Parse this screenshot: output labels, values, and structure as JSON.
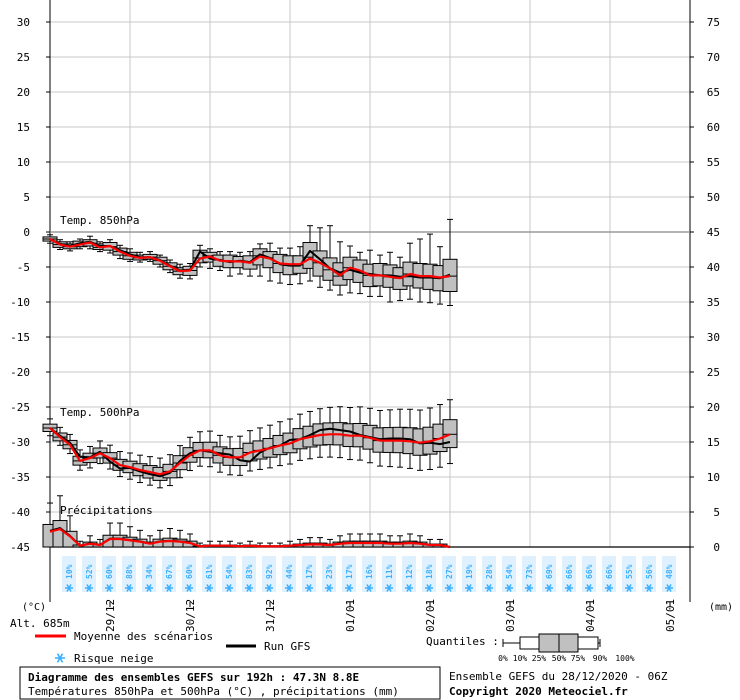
{
  "chart_data": {
    "type": "boxplot-ensemble",
    "title": "Diagramme des ensembles GEFS sur 192h : 47.3N 8.8E",
    "subtitle": "Températures 850hPa et 500hPa (°C) , précipitations (mm)",
    "run_info": "Ensemble GEFS du 28/12/2020 - 06Z",
    "copyright": "Copyright 2020 Meteociel.fr",
    "left_axis": {
      "label": "(°C)",
      "ticks": [
        30,
        25,
        20,
        15,
        10,
        5,
        0,
        -5,
        -10,
        -15,
        -20,
        -25,
        -30,
        -35,
        -40,
        -45
      ],
      "range": [
        -45,
        30
      ]
    },
    "right_axis": {
      "label": "(mm)",
      "ticks": [
        75,
        70,
        65,
        60,
        55,
        50,
        45,
        40,
        35,
        30,
        25,
        20,
        15,
        10,
        5,
        0
      ],
      "range": [
        0,
        75
      ]
    },
    "altitude": "Alt. 685m",
    "date_labels": [
      {
        "label": "29/12",
        "step": 6
      },
      {
        "label": "30/12",
        "step": 14
      },
      {
        "label": "31/12",
        "step": 22
      },
      {
        "label": "01/01",
        "step": 30
      },
      {
        "label": "02/01",
        "step": 38
      },
      {
        "label": "03/01",
        "step": 46
      },
      {
        "label": "04/01",
        "step": 54
      },
      {
        "label": "05/01",
        "step": 62
      }
    ],
    "panels": {
      "t850_label": "Temp. 850hPa",
      "t500_label": "Temp. 500hPa",
      "precip_label": "Précipitations"
    },
    "t850": {
      "mean": [
        -1,
        -1.8,
        -2.1,
        -1.8,
        -1.5,
        -2.2,
        -2,
        -2.8,
        -3.4,
        -3.7,
        -3.6,
        -4.1,
        -4.9,
        -5.6,
        -5.5,
        -3.8,
        -3.5,
        -4.1,
        -4.2,
        -4.2,
        -4.4,
        -3.5,
        -3.8,
        -4.5,
        -4.6,
        -4.6,
        -3.8,
        -4.4,
        -5.2,
        -6.2,
        -5.1,
        -5.5,
        -6.2,
        -6.2,
        -6.4,
        -6.6,
        -6,
        -6.3,
        -6.3,
        -6.5,
        -6.3
      ],
      "gfs": [
        -1,
        -1.7,
        -2,
        -1.6,
        -1.4,
        -2,
        -2,
        -2.6,
        -3.2,
        -3.6,
        -3.6,
        -4,
        -4.8,
        -5.5,
        -5.4,
        -2.8,
        -3.8,
        -4,
        -4.3,
        -4.1,
        -4.3,
        -3.2,
        -3.7,
        -4.6,
        -4.8,
        -4.8,
        -2.7,
        -3.9,
        -5.2,
        -5.8,
        -5.4,
        -5.8,
        -6,
        -6.2,
        -6.2,
        -6.4,
        -6.3,
        -6.5,
        -6.5,
        -6.6,
        -6.1
      ],
      "q10": [
        -1.6,
        -2.5,
        -2.7,
        -2.4,
        -2.4,
        -2.8,
        -3,
        -3.8,
        -4.2,
        -4.3,
        -4.2,
        -5,
        -5.8,
        -6.6,
        -6.7,
        -5,
        -5.2,
        -5.5,
        -6.3,
        -6,
        -6.3,
        -6.3,
        -7,
        -7.3,
        -7.5,
        -7.4,
        -7,
        -7.9,
        -8.3,
        -9,
        -8.7,
        -8.8,
        -9.2,
        -9.2,
        -10,
        -9.8,
        -9.6,
        -10,
        -10.1,
        -10.3,
        -10.5
      ],
      "q25": [
        -1.3,
        -2.2,
        -2.4,
        -2.1,
        -2,
        -2.5,
        -2.6,
        -3.3,
        -3.9,
        -4,
        -3.9,
        -4.6,
        -5.4,
        -6.1,
        -6.2,
        -4.4,
        -4.3,
        -4.9,
        -5.1,
        -5.1,
        -5.3,
        -4.7,
        -5.1,
        -5.8,
        -6.1,
        -5.9,
        -5.2,
        -6.3,
        -6.9,
        -7.6,
        -6.8,
        -7.2,
        -7.8,
        -7.7,
        -7.9,
        -8.2,
        -7.7,
        -8,
        -8.2,
        -8.4,
        -8.5
      ],
      "q50": [
        -1,
        -1.8,
        -2.1,
        -1.8,
        -1.6,
        -2.2,
        -2.1,
        -2.8,
        -3.4,
        -3.7,
        -3.6,
        -4.1,
        -4.9,
        -5.6,
        -5.5,
        -3.7,
        -3.4,
        -4,
        -4.1,
        -4.2,
        -4.3,
        -3.4,
        -3.7,
        -4.5,
        -4.6,
        -4.7,
        -3.6,
        -4.4,
        -5.4,
        -6.3,
        -5.1,
        -5.6,
        -6.2,
        -6.2,
        -6.4,
        -6.6,
        -6,
        -6.3,
        -6.3,
        -6.5,
        -6.3
      ],
      "q75": [
        -0.7,
        -1.4,
        -1.7,
        -1.3,
        -1.1,
        -1.7,
        -1.5,
        -2.3,
        -2.9,
        -3.3,
        -3.2,
        -3.6,
        -4.4,
        -5.1,
        -4.9,
        -2.6,
        -2.9,
        -3.3,
        -3.3,
        -3.5,
        -3.4,
        -2.4,
        -2.8,
        -3.2,
        -3.4,
        -3.4,
        -1.5,
        -2.7,
        -3.7,
        -4.4,
        -3.6,
        -4,
        -4.6,
        -4.5,
        -4.7,
        -5.1,
        -4.3,
        -4.5,
        -4.6,
        -4.8,
        -3.9
      ],
      "q90": [
        -0.4,
        -1.1,
        -1.4,
        -1,
        -0.6,
        -1.4,
        -1.1,
        -1.9,
        -2.4,
        -2.9,
        -2.8,
        -3.3,
        -4,
        -4.6,
        -4.5,
        -1.9,
        -2.4,
        -2.8,
        -2.8,
        -2.9,
        -2.8,
        -1.7,
        -1.6,
        -2.3,
        -2.3,
        -2.1,
        0.9,
        0.6,
        0.9,
        -1.4,
        -2,
        -2.9,
        -2.6,
        -3.3,
        -2.9,
        -3.6,
        -1.6,
        -1,
        -0.3,
        -2.1,
        1.8
      ]
    },
    "t500": {
      "mean": [
        -28,
        -29.3,
        -30.4,
        -32.7,
        -32.3,
        -31.6,
        -32.3,
        -33.3,
        -33.6,
        -34,
        -34.3,
        -34.6,
        -34.2,
        -33,
        -31.9,
        -31.2,
        -31.2,
        -31.9,
        -32.2,
        -32.2,
        -31.5,
        -31.2,
        -30.9,
        -30.5,
        -30.2,
        -29.6,
        -29.3,
        -29,
        -28.9,
        -28.9,
        -29.1,
        -29.1,
        -29.4,
        -29.8,
        -29.8,
        -29.8,
        -29.9,
        -30.1,
        -29.9,
        -29.5,
        -28.9
      ],
      "gfs": [
        -28,
        -29.1,
        -30.1,
        -32.1,
        -32.2,
        -31.4,
        -32.8,
        -33.8,
        -33.7,
        -34.2,
        -34.6,
        -34.9,
        -34.4,
        -32.7,
        -31.6,
        -31.2,
        -31.4,
        -31.6,
        -31.8,
        -32.6,
        -32.8,
        -31.5,
        -30.8,
        -30.5,
        -29.7,
        -29.6,
        -29,
        -28.3,
        -28.1,
        -28.3,
        -28.5,
        -29,
        -29.3,
        -29.6,
        -29.5,
        -29.5,
        -29.6,
        -30.2,
        -30.1,
        -30.3,
        -30
      ]
    },
    "precip": {
      "mean": [
        2.3,
        2.7,
        1.6,
        0.2,
        0.5,
        0.3,
        1.2,
        1.2,
        1,
        0.8,
        0.5,
        0.8,
        0.9,
        0.8,
        0.6,
        0.1,
        0.2,
        0.2,
        0.2,
        0.1,
        0.2,
        0.1,
        0.1,
        0.1,
        0.2,
        0.3,
        0.4,
        0.4,
        0.3,
        0.5,
        0.6,
        0.6,
        0.6,
        0.6,
        0.5,
        0.5,
        0.6,
        0.5,
        0.3,
        0.3,
        0
      ]
    },
    "snow_risk": [
      "10%",
      "52%",
      "60%",
      "88%",
      "34%",
      "67%",
      "60%",
      "61%",
      "54%",
      "83%",
      "92%",
      "44%",
      "17%",
      "23%",
      "17%",
      "16%",
      "11%",
      "12%",
      "18%",
      "27%",
      "19%",
      "28%",
      "54%",
      "73%",
      "69%",
      "66%",
      "66%",
      "66%",
      "55%",
      "56%",
      "48%"
    ],
    "legend": {
      "mean_label": "Moyenne des scénarios",
      "gfs_label": "Run GFS",
      "snow_label": "Risque neige",
      "quantiles_label": "Quantiles :",
      "quantile_ticks": [
        "0%",
        "10%",
        "25%",
        "50%",
        "75%",
        "90%",
        "100%"
      ]
    },
    "colors": {
      "mean": "#ff0000",
      "gfs": "#000000",
      "box_fill": "#c0c0c0",
      "grid": "#c8c8c8",
      "snow": "#3db0ff",
      "snow_box": "#dff0ff"
    }
  }
}
